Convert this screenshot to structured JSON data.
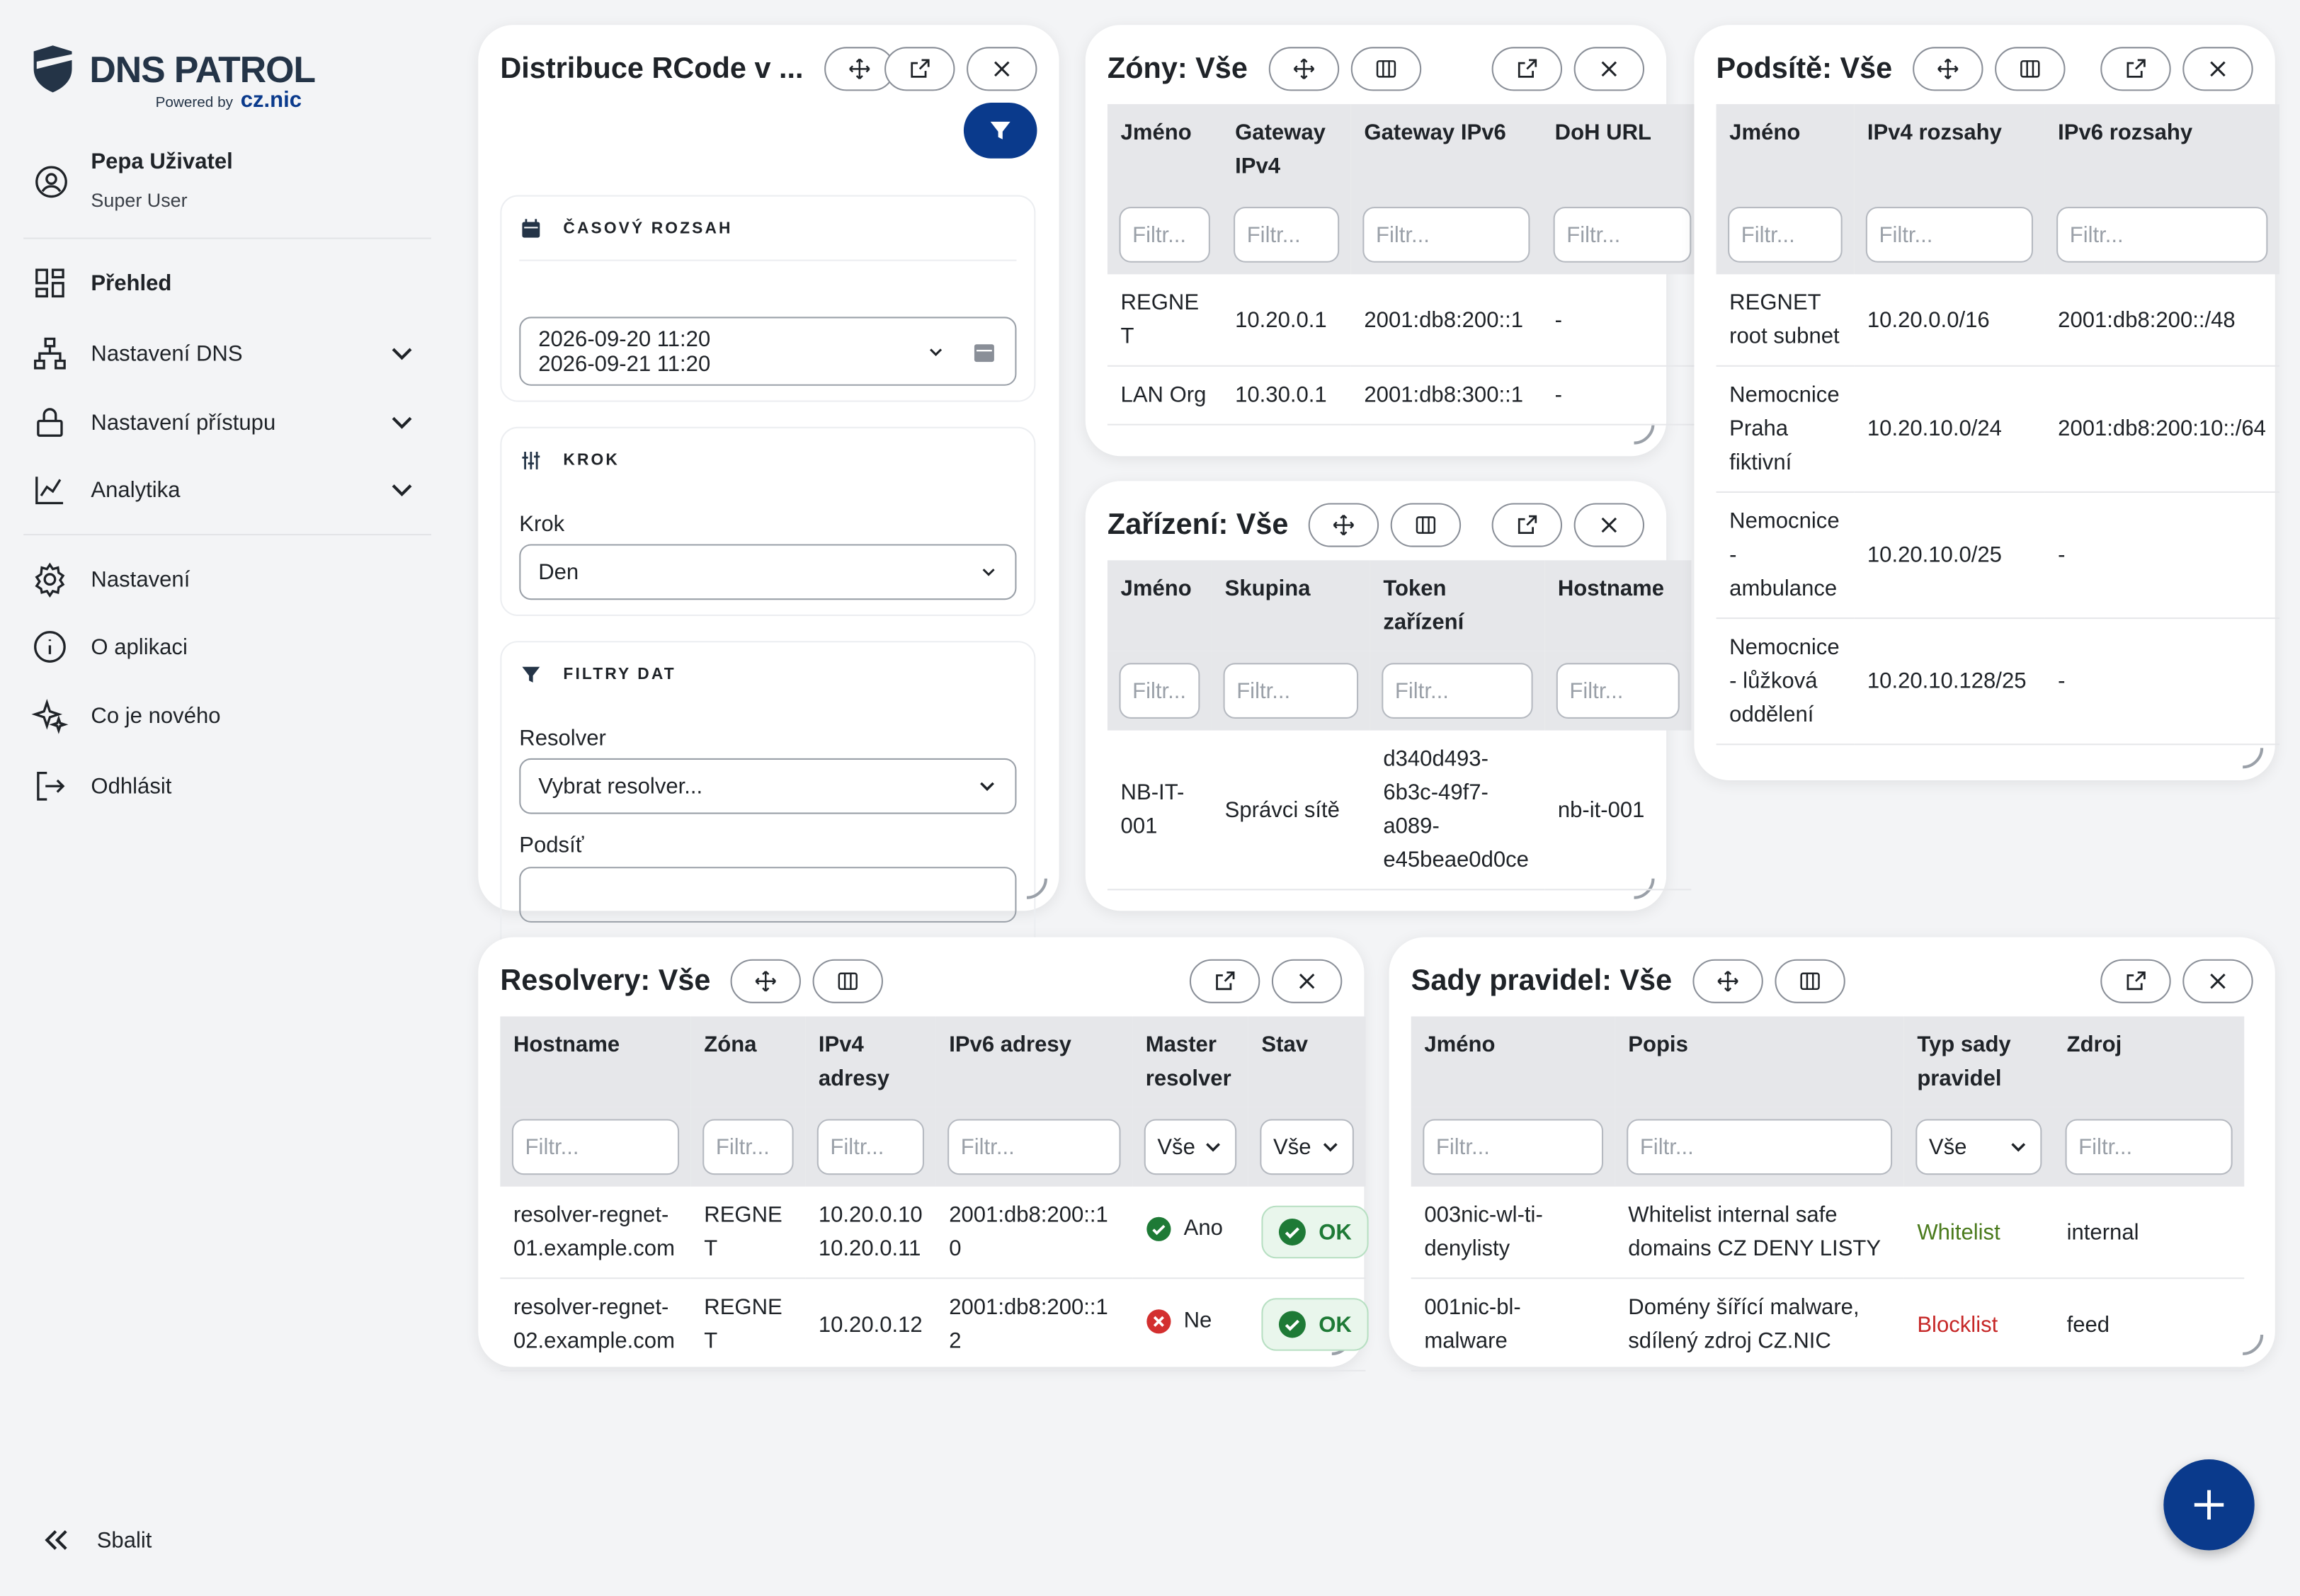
{
  "sidebar": {
    "brand": "DNS PATROL",
    "powered_by": "Powered by",
    "brand_sub": "cz.nic",
    "user_name": "Pepa Uživatel",
    "user_role": "Super User",
    "nav": [
      "Přehled",
      "Nastavení DNS",
      "Nastavení přístupu",
      "Analytika",
      "Nastavení",
      "O aplikaci",
      "Co je nového",
      "Odhlásit"
    ],
    "collapse": "Sbalit"
  },
  "widgets": {
    "rcode": {
      "title": "Distribuce RCode v ...",
      "time_range": {
        "heading": "ČASOVÝ ROZSAH",
        "from": "2026-09-20 11:20",
        "to": "2026-09-21 11:20"
      },
      "step": {
        "heading": "KROK",
        "label": "Krok",
        "value": "Den"
      },
      "filters": {
        "heading": "FILTRY DAT",
        "resolver_label": "Resolver",
        "resolver_value": "Vybrat resolver...",
        "subnet_label": "Podsíť"
      }
    },
    "zones": {
      "title": "Zóny: Vše",
      "columns": [
        "Jméno",
        "Gateway IPv4",
        "Gateway IPv6",
        "DoH URL"
      ],
      "filters": [
        {
          "type": "text",
          "placeholder": "Filtr..."
        },
        {
          "type": "text",
          "placeholder": "Filtr..."
        },
        {
          "type": "text",
          "placeholder": "Filtr..."
        },
        {
          "type": "text",
          "placeholder": "Filtr..."
        }
      ],
      "rows": [
        [
          "REGNET",
          "10.20.0.1",
          "2001:db8:200::1",
          "-"
        ],
        [
          "LAN Org",
          "10.30.0.1",
          "2001:db8:300::1",
          "-"
        ]
      ]
    },
    "devices": {
      "title": "Zařízení: Vše",
      "columns": [
        "Jméno",
        "Skupina",
        "Token zařízení",
        "Hostname"
      ],
      "filters": [
        {
          "type": "text",
          "placeholder": "Filtr..."
        },
        {
          "type": "text",
          "placeholder": "Filtr..."
        },
        {
          "type": "text",
          "placeholder": "Filtr..."
        },
        {
          "type": "text",
          "placeholder": "Filtr..."
        }
      ],
      "rows": [
        [
          "NB-IT-001",
          "Správci sítě",
          "d340d493-6b3c-49f7-a089-e45beae0d0ce",
          "nb-it-001"
        ]
      ]
    },
    "subnets": {
      "title": "Podsítě: Vše",
      "columns": [
        "Jméno",
        "IPv4 rozsahy",
        "IPv6 rozsahy"
      ],
      "filters": [
        {
          "type": "text",
          "placeholder": "Filtr..."
        },
        {
          "type": "text",
          "placeholder": "Filtr..."
        },
        {
          "type": "text",
          "placeholder": "Filtr..."
        }
      ],
      "rows": [
        [
          "REGNET root subnet",
          "10.20.0.0/16",
          "2001:db8:200::/48"
        ],
        [
          "Nemocnice Praha fiktivní",
          "10.20.10.0/24",
          "2001:db8:200:10::/64"
        ],
        [
          "Nemocnice - ambulance",
          "10.20.10.0/25",
          "-"
        ],
        [
          "Nemocnice - lůžková oddělení",
          "10.20.10.128/25",
          "-"
        ]
      ]
    },
    "resolvers": {
      "title": "Resolvery: Vše",
      "columns": [
        "Hostname",
        "Zóna",
        "IPv4 adresy",
        "IPv6 adresy",
        "Master resolver",
        "Stav"
      ],
      "filters": [
        {
          "type": "text",
          "placeholder": "Filtr..."
        },
        {
          "type": "text",
          "placeholder": "Filtr..."
        },
        {
          "type": "text",
          "placeholder": "Filtr..."
        },
        {
          "type": "text",
          "placeholder": "Filtr..."
        },
        {
          "type": "select",
          "value": "Vše"
        },
        {
          "type": "select",
          "value": "Vše"
        }
      ],
      "rows": [
        [
          "resolver-regnet-01.example.com",
          "REGNET",
          "10.20.0.10\n10.20.0.11",
          "2001:db8:200::10",
          {
            "text": "Ano",
            "icon": "check"
          },
          {
            "text": "OK",
            "icon": "check",
            "badge": true
          }
        ],
        [
          "resolver-regnet-02.example.com",
          "REGNET",
          "10.20.0.12",
          "2001:db8:200::12",
          {
            "text": "Ne",
            "icon": "cross"
          },
          {
            "text": "OK",
            "icon": "check",
            "badge": true
          }
        ]
      ]
    },
    "rulesets": {
      "title": "Sady pravidel: Vše",
      "columns": [
        "Jméno",
        "Popis",
        "Typ sady pravidel",
        "Zdroj"
      ],
      "filters": [
        {
          "type": "text",
          "placeholder": "Filtr..."
        },
        {
          "type": "text",
          "placeholder": "Filtr..."
        },
        {
          "type": "select",
          "value": "Vše"
        },
        {
          "type": "text",
          "placeholder": "Filtr..."
        }
      ],
      "rows": [
        [
          "003nic-wl-ti-denylisty",
          "Whitelist internal safe domains CZ DENY LISTY",
          {
            "text": "Whitelist",
            "color": "#4a7a1c"
          },
          "internal"
        ],
        [
          "001nic-bl-malware",
          "Domény šířící malware, sdílený zdroj CZ.NIC",
          {
            "text": "Blocklist",
            "color": "#c62828"
          },
          "feed"
        ]
      ]
    }
  }
}
